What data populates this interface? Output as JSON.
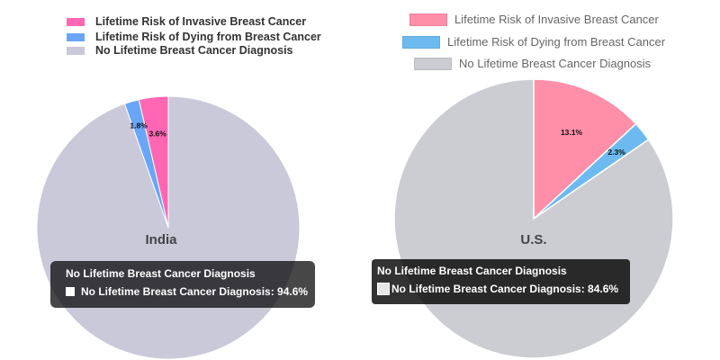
{
  "chart_data": [
    {
      "type": "pie",
      "title": "India",
      "legend_position": "top",
      "categories": [
        "Lifetime Risk of Invasive  Breast Cancer",
        "Lifetime Risk of Dying from Breast Cancer",
        "No Lifetime Breast Cancer Diagnosis"
      ],
      "values": [
        3.6,
        1.8,
        94.6
      ],
      "value_labels": [
        "3.6%",
        "1.8%",
        ""
      ],
      "colors": [
        "#ff66b3",
        "#6aa6f8",
        "#c9c9d9"
      ],
      "tooltip": {
        "title": "No Lifetime Breast Cancer Diagnosis",
        "text": "No Lifetime Breast Cancer Diagnosis: 94.6%"
      }
    },
    {
      "type": "pie",
      "title": "U.S.",
      "legend_position": "top",
      "categories": [
        "Lifetime Risk of Invasive Breast Cancer",
        "Lifetime Risk of Dying from Breast Cancer",
        "No Lifetime Breast Cancer Diagnosis"
      ],
      "values": [
        13.1,
        2.3,
        84.6
      ],
      "value_labels": [
        "13.1%",
        "2.3%",
        ""
      ],
      "colors": [
        "#ff8fa8",
        "#6cbaf0",
        "#cbcdd3"
      ],
      "tooltip": {
        "title": "No Lifetime Breast Cancer Diagnosis",
        "text": "No Lifetime Breast Cancer Diagnosis: 84.6%"
      }
    }
  ]
}
